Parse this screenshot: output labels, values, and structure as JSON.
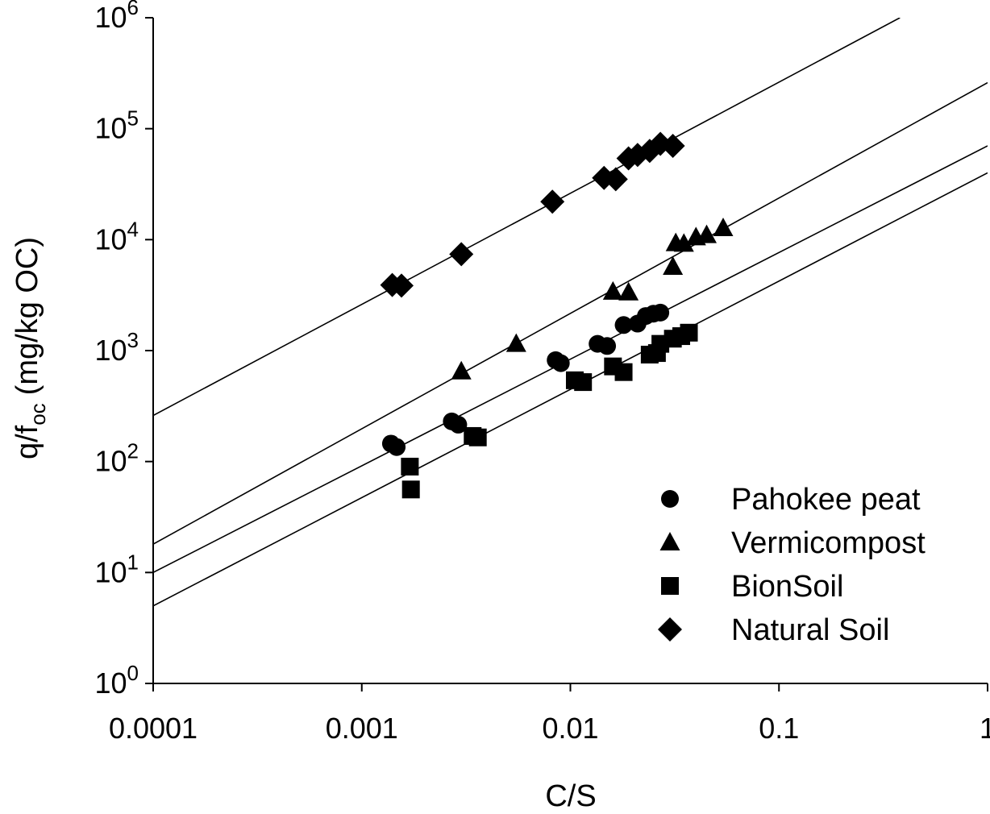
{
  "chart_data": {
    "type": "scatter",
    "title": "",
    "xlabel": "C/S",
    "ylabel": {
      "main": "q/f",
      "subscript": "oc",
      "units": "(mg/kg OC)"
    },
    "xscale": "log",
    "yscale": "log",
    "xlim": [
      0.0001,
      1
    ],
    "ylim": [
      1,
      1000000
    ],
    "x_ticks": [
      {
        "value": 0.0001,
        "label": "0.0001"
      },
      {
        "value": 0.001,
        "label": "0.001"
      },
      {
        "value": 0.01,
        "label": "0.01"
      },
      {
        "value": 0.1,
        "label": "0.1"
      },
      {
        "value": 1,
        "label": "1"
      }
    ],
    "y_ticks": [
      {
        "value": 1,
        "base": "10",
        "exp": "0"
      },
      {
        "value": 10,
        "base": "10",
        "exp": "1"
      },
      {
        "value": 100,
        "base": "10",
        "exp": "2"
      },
      {
        "value": 1000,
        "base": "10",
        "exp": "3"
      },
      {
        "value": 10000,
        "base": "10",
        "exp": "4"
      },
      {
        "value": 100000,
        "base": "10",
        "exp": "5"
      },
      {
        "value": 1000000,
        "base": "10",
        "exp": "6"
      }
    ],
    "grid": false,
    "legend_position": "bottom-right",
    "series": [
      {
        "name": "Pahokee peat",
        "marker": "circle",
        "points": [
          [
            0.00138,
            145
          ],
          [
            0.00147,
            135
          ],
          [
            0.0027,
            230
          ],
          [
            0.0029,
            215
          ],
          [
            0.0085,
            820
          ],
          [
            0.009,
            770
          ],
          [
            0.0135,
            1150
          ],
          [
            0.015,
            1100
          ],
          [
            0.018,
            1700
          ],
          [
            0.021,
            1750
          ],
          [
            0.023,
            2050
          ],
          [
            0.025,
            2150
          ],
          [
            0.027,
            2200
          ]
        ],
        "fit_line": [
          [
            0.0001,
            10
          ],
          [
            1,
            70000
          ]
        ]
      },
      {
        "name": "Vermicompost",
        "marker": "triangle",
        "points": [
          [
            0.003,
            650
          ],
          [
            0.0055,
            1150
          ],
          [
            0.016,
            3400
          ],
          [
            0.019,
            3350
          ],
          [
            0.031,
            5700
          ],
          [
            0.032,
            9300
          ],
          [
            0.035,
            9200
          ],
          [
            0.04,
            10500
          ],
          [
            0.045,
            11000
          ],
          [
            0.054,
            12700
          ]
        ],
        "fit_line": [
          [
            0.0001,
            18
          ],
          [
            1,
            260000
          ]
        ]
      },
      {
        "name": "BionSoil",
        "marker": "square",
        "points": [
          [
            0.0017,
            90
          ],
          [
            0.00172,
            56
          ],
          [
            0.0034,
            170
          ],
          [
            0.0036,
            165
          ],
          [
            0.0105,
            540
          ],
          [
            0.0115,
            520
          ],
          [
            0.016,
            720
          ],
          [
            0.018,
            640
          ],
          [
            0.024,
            920
          ],
          [
            0.026,
            950
          ],
          [
            0.027,
            1150
          ],
          [
            0.031,
            1280
          ],
          [
            0.034,
            1350
          ],
          [
            0.037,
            1450
          ]
        ],
        "fit_line": [
          [
            0.0001,
            5
          ],
          [
            1,
            40000
          ]
        ]
      },
      {
        "name": "Natural Soil",
        "marker": "diamond",
        "points": [
          [
            0.0014,
            3900
          ],
          [
            0.00155,
            3850
          ],
          [
            0.003,
            7400
          ],
          [
            0.0082,
            22000
          ],
          [
            0.0145,
            36000
          ],
          [
            0.0165,
            35000
          ],
          [
            0.019,
            54000
          ],
          [
            0.021,
            58000
          ],
          [
            0.024,
            63000
          ],
          [
            0.027,
            73000
          ],
          [
            0.031,
            70000
          ]
        ],
        "fit_line": [
          [
            0.0001,
            260
          ],
          [
            0.38,
            1000000
          ]
        ]
      }
    ]
  }
}
